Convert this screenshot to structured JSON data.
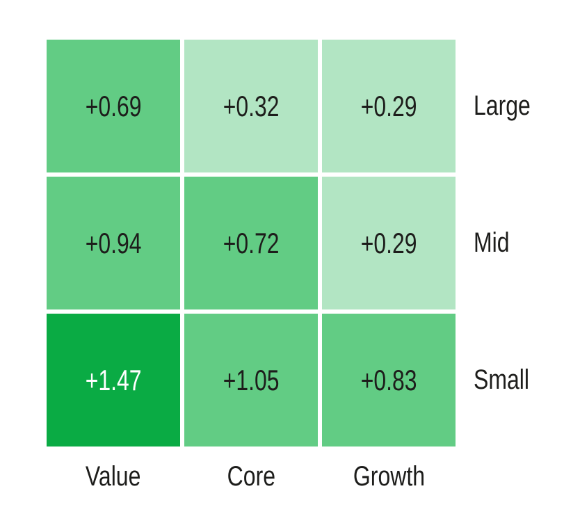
{
  "chart_data": {
    "type": "heatmap",
    "title": "",
    "columns": [
      "Value",
      "Core",
      "Growth"
    ],
    "rows": [
      "Large",
      "Mid",
      "Small"
    ],
    "values": [
      [
        0.69,
        0.32,
        0.29
      ],
      [
        0.94,
        0.72,
        0.29
      ],
      [
        1.47,
        1.05,
        0.83
      ]
    ],
    "cell_labels": [
      [
        "+0.69",
        "+0.32",
        "+0.29"
      ],
      [
        "+0.94",
        "+0.72",
        "+0.29"
      ],
      [
        "+1.47",
        "+1.05",
        "+0.83"
      ]
    ],
    "cell_levels": [
      [
        "medium",
        "light",
        "light"
      ],
      [
        "medium",
        "medium",
        "light"
      ],
      [
        "dark",
        "medium",
        "medium"
      ]
    ],
    "palette": {
      "light": "#b2e5c3",
      "medium": "#62cc84",
      "dark": "#0aab44"
    },
    "value_text_color": "#1d1d1b",
    "value_text_color_on_dark": "#ffffff",
    "label_text_color": "#1d1d1b",
    "background_color": "#ffffff",
    "legend": "none",
    "grid": "off"
  }
}
